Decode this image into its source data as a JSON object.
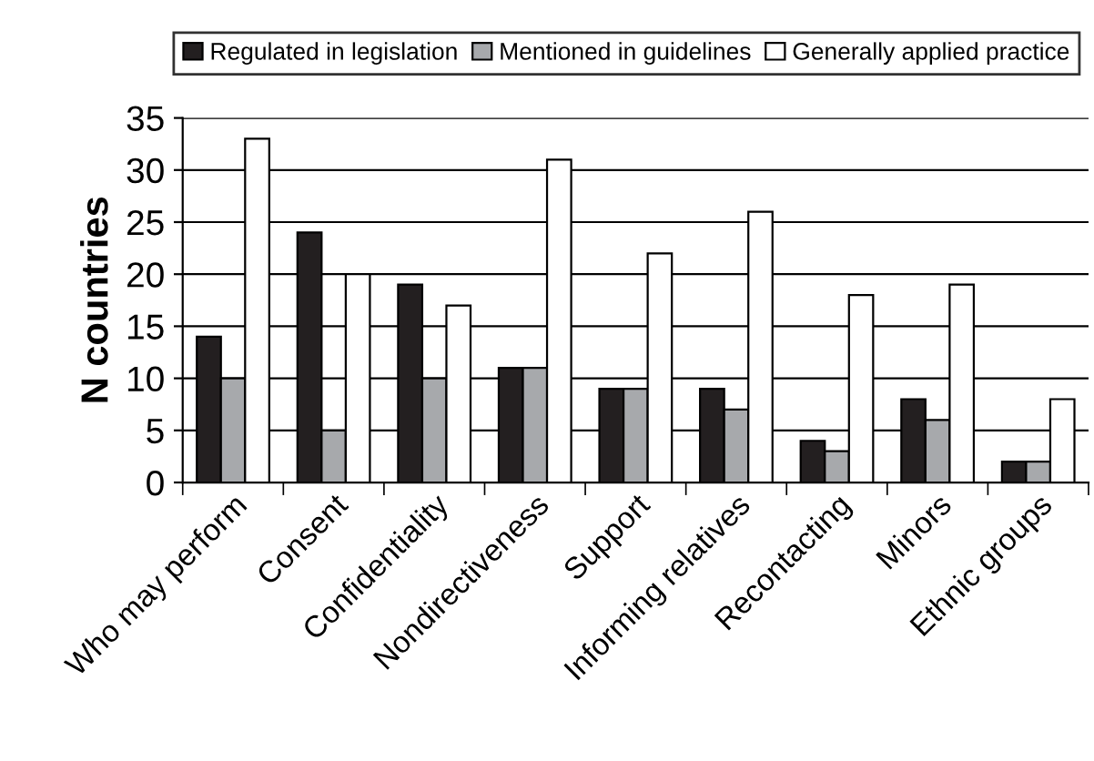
{
  "chart_data": {
    "type": "bar",
    "ylabel": "N countries",
    "categories": [
      "Who may perform",
      "Consent",
      "Confidentiality",
      "Nondirectiveness",
      "Support",
      "Informing relatives",
      "Recontacting",
      "Minors",
      "Ethnic groups"
    ],
    "series": [
      {
        "name": "Regulated in legislation",
        "color": "#231f20",
        "values": [
          14,
          24,
          19,
          11,
          9,
          9,
          4,
          8,
          2
        ]
      },
      {
        "name": "Mentioned in guidelines",
        "color": "#a7a9ac",
        "values": [
          10,
          5,
          10,
          11,
          9,
          7,
          3,
          6,
          2
        ]
      },
      {
        "name": "Generally applied practice",
        "color": "#ffffff",
        "values": [
          33,
          20,
          17,
          31,
          22,
          26,
          18,
          19,
          8
        ]
      }
    ],
    "ylim": [
      0,
      35
    ],
    "yticks": [
      0,
      5,
      10,
      15,
      20,
      25,
      30,
      35
    ],
    "grid": "y",
    "legend": "top"
  }
}
